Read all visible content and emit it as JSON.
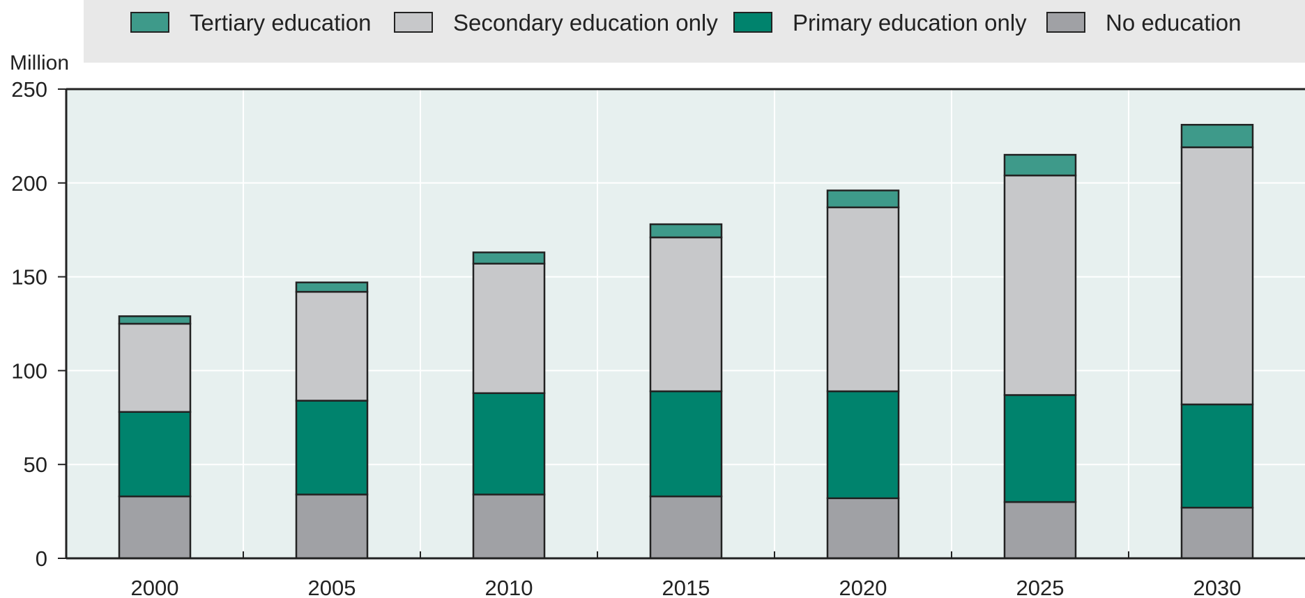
{
  "chart_data": {
    "type": "bar",
    "stacked": true,
    "unit_label": "Million",
    "categories": [
      "2000",
      "2005",
      "2010",
      "2015",
      "2020",
      "2025",
      "2030"
    ],
    "ylim": [
      0,
      250
    ],
    "yticks": [
      "0",
      "50",
      "100",
      "150",
      "200",
      "250"
    ],
    "grid": true,
    "legend_position": "top",
    "series": [
      {
        "name": "No education",
        "color": "#a0a1a5",
        "values": [
          33,
          34,
          34,
          33,
          32,
          30,
          27
        ]
      },
      {
        "name": "Primary education only",
        "color": "#00836d",
        "values": [
          45,
          50,
          54,
          56,
          57,
          57,
          55
        ]
      },
      {
        "name": "Secondary education only",
        "color": "#c7c8ca",
        "values": [
          47,
          58,
          69,
          82,
          98,
          117,
          137
        ]
      },
      {
        "name": "Tertiary education",
        "color": "#3e9a8a",
        "values": [
          4,
          5,
          6,
          7,
          9,
          11,
          12
        ]
      }
    ],
    "legend_order": [
      "Tertiary education",
      "Secondary education only",
      "Primary education only",
      "No education"
    ],
    "plot_background": "#e7f0ef",
    "bar_outline": "#222222"
  }
}
